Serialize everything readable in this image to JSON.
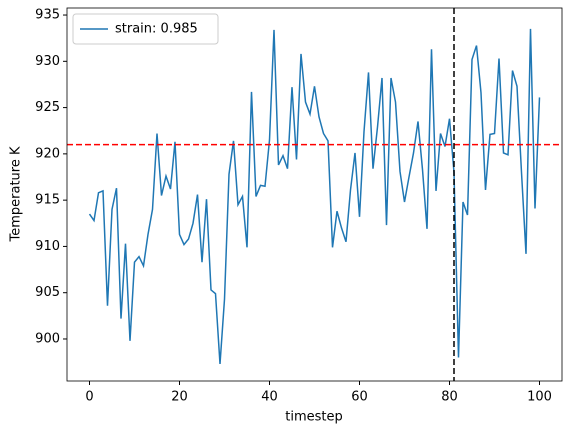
{
  "chart_data": {
    "type": "line",
    "x": [
      0,
      1,
      2,
      3,
      4,
      5,
      6,
      7,
      8,
      9,
      10,
      11,
      12,
      13,
      14,
      15,
      16,
      17,
      18,
      19,
      20,
      21,
      22,
      23,
      24,
      25,
      26,
      27,
      28,
      29,
      30,
      31,
      32,
      33,
      34,
      35,
      36,
      37,
      38,
      39,
      40,
      41,
      42,
      43,
      44,
      45,
      46,
      47,
      48,
      49,
      50,
      51,
      52,
      53,
      54,
      55,
      56,
      57,
      58,
      59,
      60,
      61,
      62,
      63,
      64,
      65,
      66,
      67,
      68,
      69,
      70,
      71,
      72,
      73,
      74,
      75,
      76,
      77,
      78,
      79,
      80,
      81,
      82,
      83,
      84,
      85,
      86,
      87,
      88,
      89,
      90,
      91,
      92,
      93,
      94,
      95,
      96,
      97,
      98,
      99,
      100
    ],
    "series": [
      {
        "name": "strain: 0.985",
        "color": "#1f77b4",
        "values": [
          913.5,
          912.8,
          915.8,
          916.0,
          903.6,
          914.0,
          916.3,
          902.2,
          910.3,
          899.8,
          908.3,
          908.9,
          907.9,
          911.3,
          914.0,
          922.2,
          915.5,
          917.6,
          916.2,
          921.3,
          911.3,
          910.2,
          910.8,
          912.5,
          915.6,
          908.3,
          915.1,
          905.3,
          904.9,
          897.3,
          904.3,
          917.8,
          921.4,
          914.5,
          915.4,
          909.9,
          926.7,
          915.4,
          916.6,
          916.5,
          921.5,
          933.4,
          918.8,
          919.8,
          918.4,
          927.2,
          919.4,
          930.8,
          925.6,
          924.3,
          927.3,
          924.0,
          922.2,
          921.4,
          909.9,
          913.8,
          912.0,
          910.5,
          916.1,
          920.1,
          913.2,
          922.4,
          928.8,
          918.4,
          922.9,
          928.2,
          912.3,
          928.2,
          925.6,
          918.1,
          914.8,
          917.5,
          920.1,
          923.5,
          918.3,
          911.9,
          931.3,
          916.0,
          922.2,
          920.8,
          923.8,
          918.0,
          898.0,
          914.8,
          913.4,
          930.2,
          931.7,
          926.6,
          916.1,
          922.1,
          922.2,
          930.3,
          920.1,
          919.9,
          929.0,
          927.3,
          918.0,
          909.2,
          933.5,
          914.1,
          926.1
        ]
      }
    ],
    "hline": {
      "value": 921,
      "color": "red"
    },
    "vline": {
      "value": 81,
      "color": "black"
    },
    "xlabel": "timestep",
    "ylabel": "Temperature K",
    "xlim": [
      -5,
      105
    ],
    "ylim": [
      895.46,
      935.76
    ],
    "xticks": [
      0,
      20,
      40,
      60,
      80,
      100
    ],
    "yticks": [
      900,
      905,
      910,
      915,
      920,
      925,
      930,
      935
    ],
    "legend": "upper-left"
  }
}
